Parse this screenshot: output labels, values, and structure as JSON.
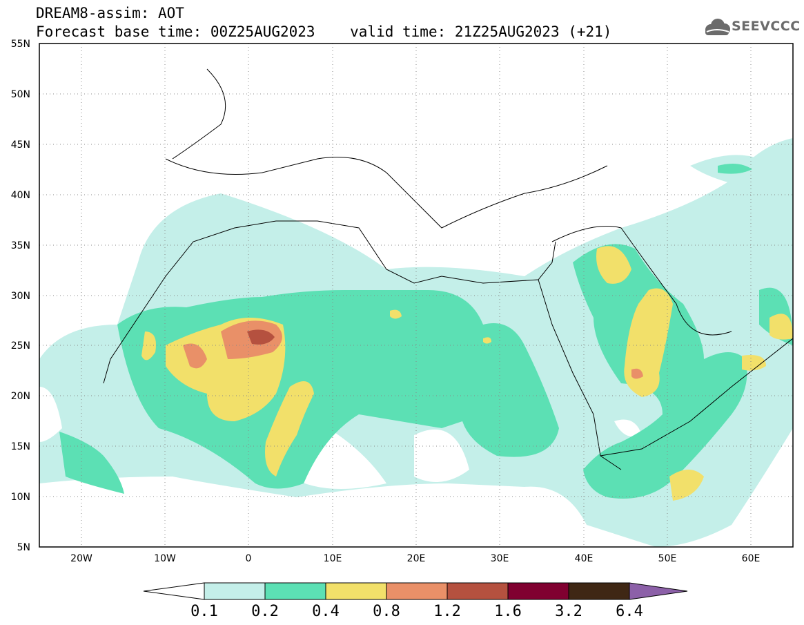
{
  "title": {
    "line1": "DREAM8-assim: AOT",
    "line2": "Forecast base time: 00Z25AUG2023    valid time: 21Z25AUG2023 (+21)"
  },
  "logo": {
    "text": "SEEVCCC",
    "icon": "cloud-icon"
  },
  "map": {
    "lon_range": [
      -25,
      65
    ],
    "lat_range": [
      5,
      55
    ],
    "lat_labels": [
      "55N",
      "50N",
      "45N",
      "40N",
      "35N",
      "30N",
      "25N",
      "20N",
      "15N",
      "10N",
      "5N"
    ],
    "lon_labels": [
      "20W",
      "10W",
      "0",
      "10E",
      "20E",
      "30E",
      "40E",
      "50E",
      "60E"
    ]
  },
  "colorbar": {
    "labels": [
      "0.1",
      "0.2",
      "0.4",
      "0.8",
      "1.2",
      "1.6",
      "3.2",
      "6.4"
    ],
    "colors": [
      "#ffffff",
      "#c4efe9",
      "#5ce0b4",
      "#f2e06a",
      "#e99068",
      "#b5513f",
      "#800030",
      "#3f2714",
      "#8c60a8"
    ]
  }
}
